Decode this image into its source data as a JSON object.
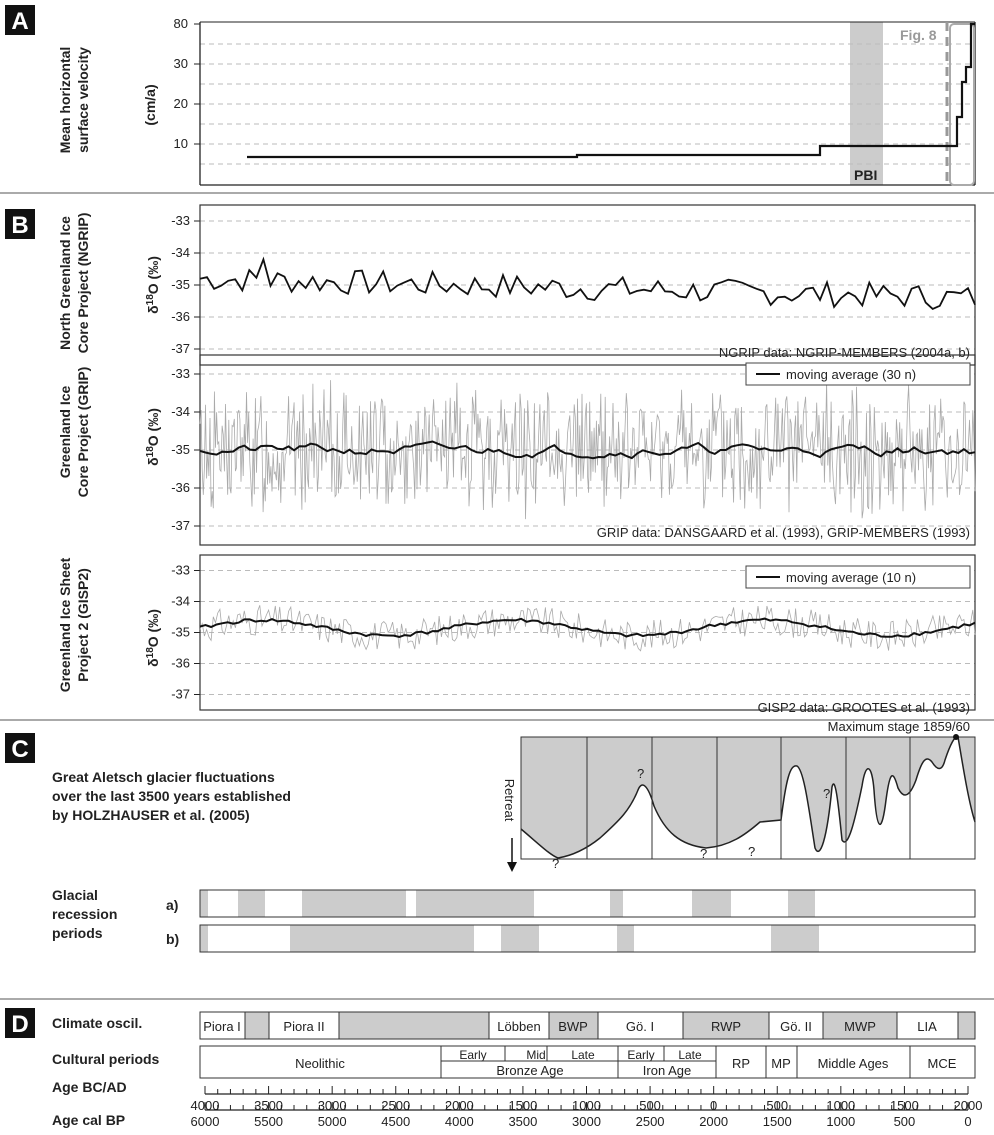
{
  "panels": {
    "A": {
      "letter": "A",
      "ylabel1": "Mean horizontal",
      "ylabel2": "surface velocity",
      "unit": "(cm/a)",
      "yticks": [
        "80",
        "30",
        "20",
        "10"
      ],
      "pbi": "PBI",
      "fig8": "Fig. 8"
    },
    "B": {
      "letter": "B",
      "ngrip": {
        "label1": "North Greenland Ice",
        "label2": "Core Project (NGRIP)",
        "source": "NGRIP data: NGRIP-MEMBERS (2004a, b)"
      },
      "grip": {
        "label1": "Greenland Ice",
        "label2": "Core Project (GRIP)",
        "source": "GRIP data: DANSGAARD et al. (1993), GRIP-MEMBERS (1993)",
        "legend": "moving average (30 n)"
      },
      "gisp2": {
        "label1": "Greenland Ice Sheet",
        "label2": "Project 2 (GISP2)",
        "source": "GISP2 data: GROOTES et al. (1993)",
        "legend": "moving average (10 n)"
      },
      "ylabel": "δ18O (‰)",
      "yticks": [
        "-33",
        "-34",
        "-35",
        "-36",
        "-37"
      ]
    },
    "C": {
      "letter": "C",
      "title1": "Great Aletsch glacier fluctuations",
      "title2": "over the last 3500 years established",
      "title3": "by HOLZHAUSER et al. (2005)",
      "max": "Maximum stage 1859/60",
      "retreat": "Retreat",
      "q": "?",
      "recession1": "Glacial",
      "recession2": "recession",
      "recession3": "periods",
      "row_a": "a)",
      "row_b": "b)"
    },
    "D": {
      "letter": "D",
      "climate_label": "Climate oscil.",
      "cultural_label": "Cultural periods",
      "age_bcad": "Age BC/AD",
      "age_bp": "Age cal BP",
      "climate": [
        "Piora I",
        "Piora II",
        "Löbben",
        "BWP",
        "Gö. I",
        "RWP",
        "Gö. II",
        "MWP",
        "LIA"
      ],
      "cultural": [
        "Neolithic",
        "Early",
        "Mid",
        "Late",
        "Bronze Age",
        "Early",
        "Late",
        "Iron Age",
        "RP",
        "MP",
        "Middle Ages",
        "MCE"
      ],
      "bcad_ticks": [
        "4000",
        "3500",
        "3000",
        "2500",
        "2000",
        "1500",
        "1000",
        "500",
        "0",
        "500",
        "1000",
        "1500",
        "2000"
      ],
      "bp_ticks": [
        "6000",
        "5500",
        "5000",
        "4500",
        "4000",
        "3500",
        "3000",
        "2500",
        "2000",
        "1500",
        "1000",
        "500",
        "0"
      ]
    }
  },
  "chart_data": [
    {
      "type": "line",
      "title": "",
      "ylabel": "Mean horizontal surface velocity (cm/a)",
      "x_unit": "Age BC/AD",
      "x": [
        -3800,
        -1400,
        -1400,
        900,
        900,
        1870,
        1870,
        1900,
        1930,
        1950,
        1980
      ],
      "y": [
        7,
        7,
        7.5,
        7.5,
        10,
        10,
        18,
        30,
        30,
        80,
        80
      ]
    },
    {
      "type": "line",
      "name": "NGRIP",
      "ylabel": "δ18O (‰)",
      "ylim": [
        -37.5,
        -32.5
      ]
    },
    {
      "type": "line",
      "name": "GRIP",
      "ylabel": "δ18O (‰)",
      "ylim": [
        -37.5,
        -32.5
      ]
    },
    {
      "type": "line",
      "name": "GISP2",
      "ylabel": "δ18O (‰)",
      "ylim": [
        -37.5,
        -32.5
      ]
    }
  ]
}
